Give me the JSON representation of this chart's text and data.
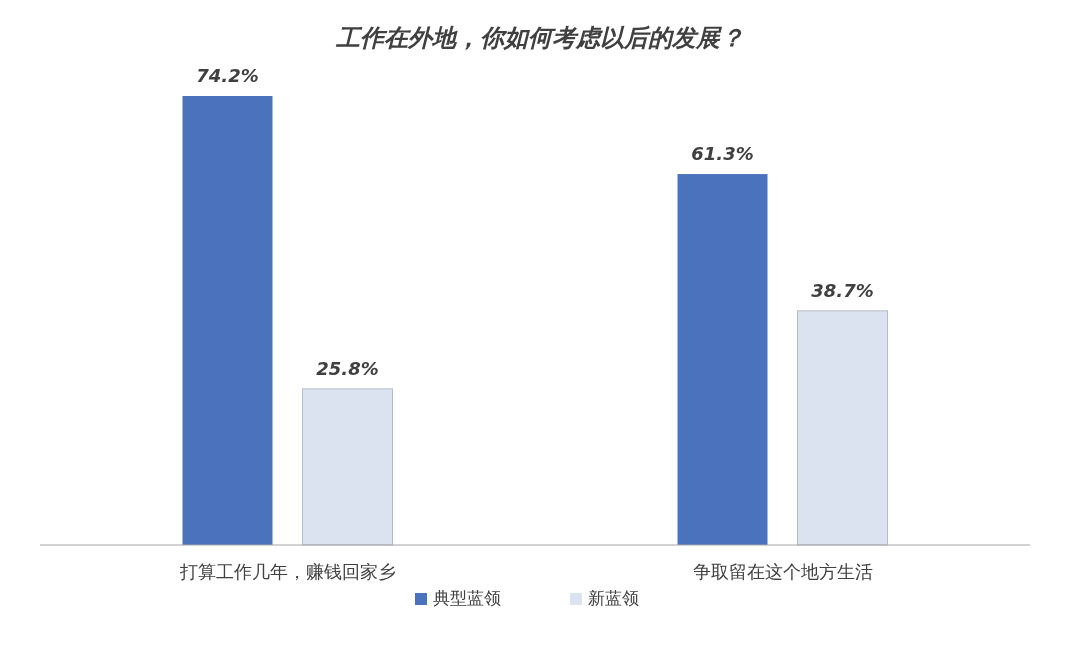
{
  "chart_data": {
    "type": "bar",
    "title": "工作在外地，你如何考虑以后的发展？",
    "categories": [
      "打算工作几年，赚钱回家乡",
      "争取留在这个地方生活"
    ],
    "series": [
      {
        "name": "典型蓝领",
        "color": "#4a72bd",
        "values": [
          74.2,
          61.3
        ],
        "value_labels": [
          "74.2%",
          "61.3%"
        ]
      },
      {
        "name": "新蓝领",
        "color": "#dce3f0",
        "values": [
          25.8,
          38.7
        ],
        "value_labels": [
          "25.8%",
          "38.7%"
        ]
      }
    ],
    "legend": "bottom",
    "grid": false
  }
}
